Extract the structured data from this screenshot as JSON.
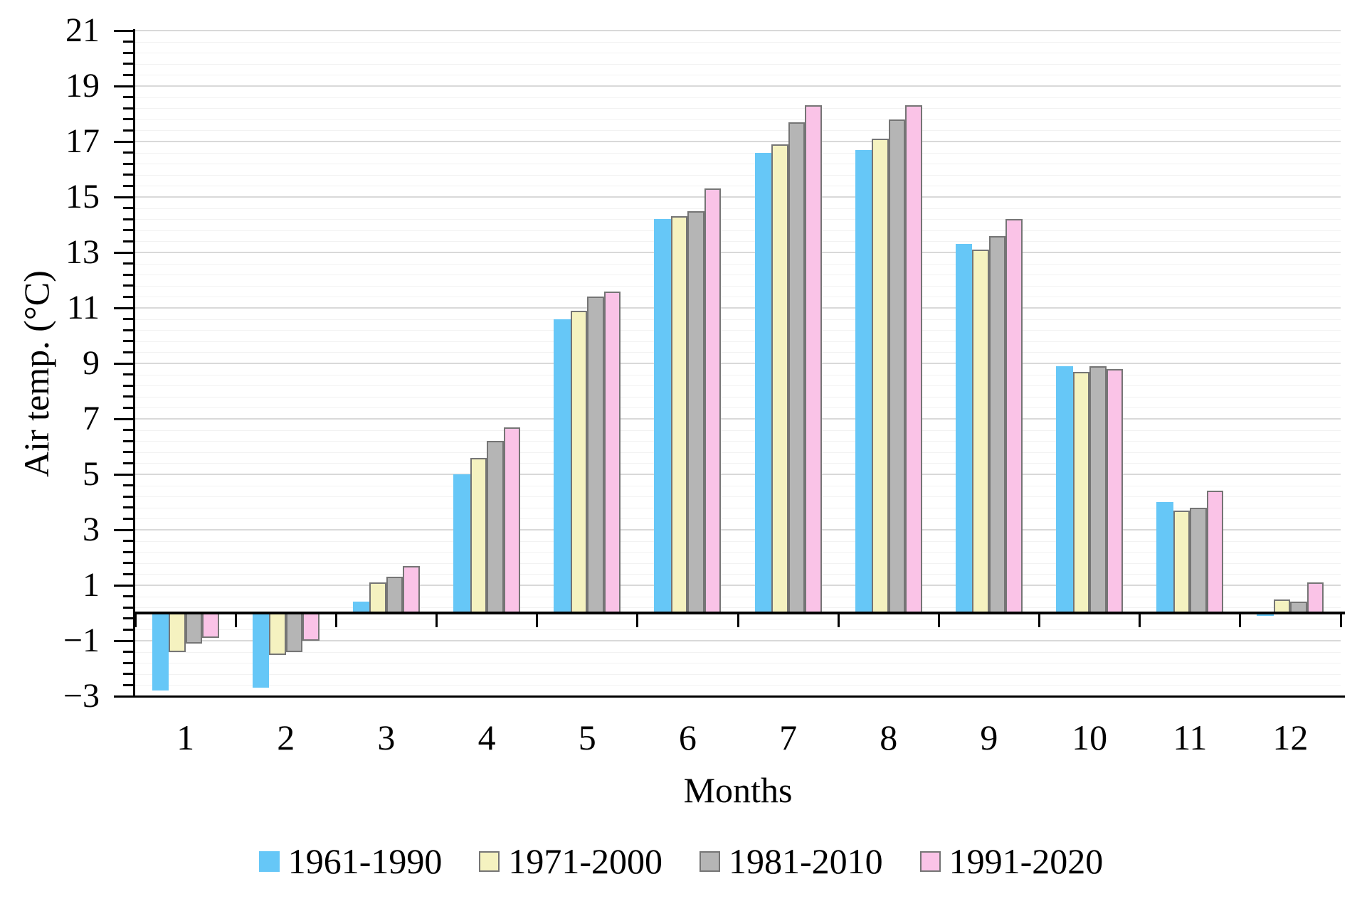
{
  "chart_data": {
    "type": "bar",
    "title": "",
    "xlabel": "Months",
    "ylabel": "Air temp. (°C)",
    "categories": [
      "1",
      "2",
      "3",
      "4",
      "5",
      "6",
      "7",
      "8",
      "9",
      "10",
      "11",
      "12"
    ],
    "series": [
      {
        "name": "1961-1990",
        "color": "#66c7f7",
        "border": null,
        "values": [
          -2.8,
          -2.7,
          0.4,
          5.0,
          10.6,
          14.2,
          16.6,
          16.7,
          13.3,
          8.9,
          4.0,
          -0.1
        ]
      },
      {
        "name": "1971-2000",
        "color": "#f5f2c0",
        "border": "#757575",
        "values": [
          -1.4,
          -1.5,
          1.1,
          5.6,
          10.9,
          14.3,
          16.9,
          17.1,
          13.1,
          8.7,
          3.7,
          0.5
        ]
      },
      {
        "name": "1981-2010",
        "color": "#b5b5b5",
        "border": "#757575",
        "values": [
          -1.1,
          -1.4,
          1.3,
          6.2,
          11.4,
          14.5,
          17.7,
          17.8,
          13.6,
          8.9,
          3.8,
          0.4
        ]
      },
      {
        "name": "1991-2020",
        "color": "#fac3e7",
        "border": "#757575",
        "values": [
          -0.9,
          -1.0,
          1.7,
          6.7,
          11.6,
          15.3,
          18.3,
          18.3,
          14.2,
          8.8,
          4.4,
          1.1
        ]
      }
    ],
    "ylim": [
      -3,
      21
    ],
    "y_major_step": 2,
    "y_minor_step": 0.4,
    "y_tick_labels": [
      "21",
      "19",
      "17",
      "15",
      "13",
      "11",
      "9",
      "7",
      "5",
      "3",
      "1",
      "−1",
      "−3"
    ],
    "grid": "horizontal major+minor",
    "legend_position": "bottom",
    "axis_color": "#000000",
    "major_grid_color": "#d9d9d9",
    "minor_grid_color": "#f2f2f2"
  }
}
